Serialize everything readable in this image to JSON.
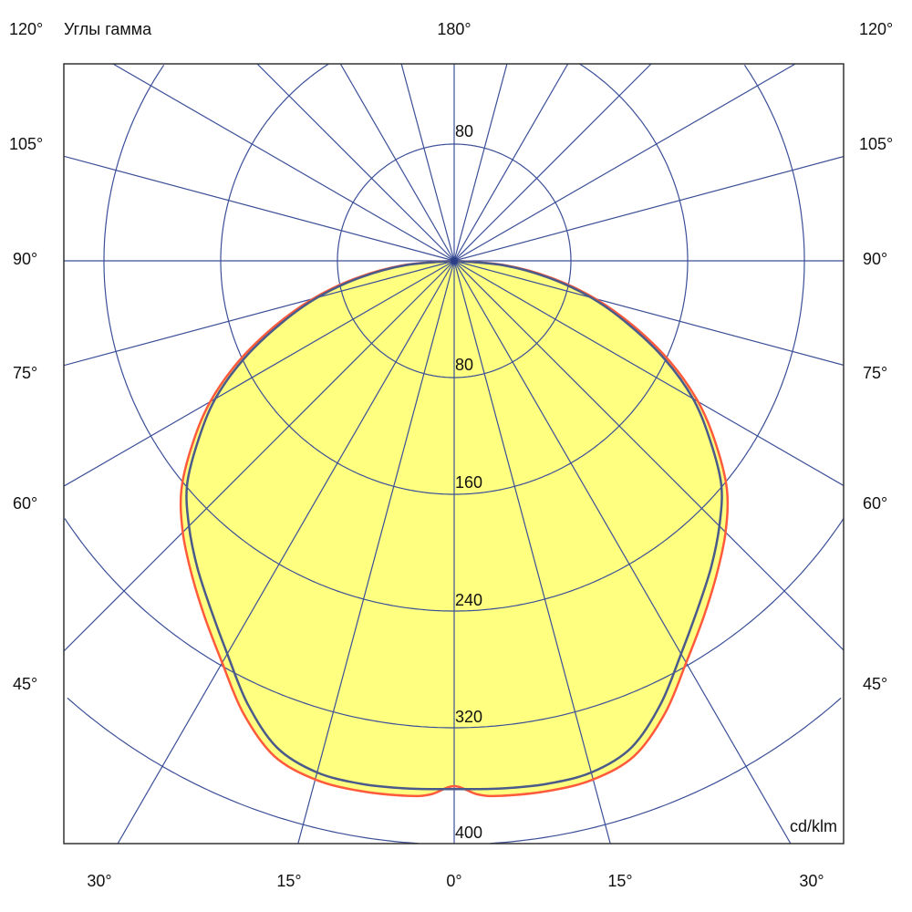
{
  "chart_data": {
    "type": "polar",
    "title": "Углы гамма",
    "unit_label": "cd/klm",
    "top_center_label": "180°",
    "corner_labels": [
      "120°",
      "120°"
    ],
    "side_angle_labels": [
      "105°",
      "90°",
      "75°",
      "60°",
      "45°"
    ],
    "bottom_angle_labels": [
      "30°",
      "15°",
      "0°",
      "15°",
      "30°"
    ],
    "radial_ticks": [
      80,
      160,
      240,
      320,
      400
    ],
    "radial_tick_labels": [
      "80",
      "160",
      "240",
      "320",
      "400"
    ],
    "upper_ring_label": "80",
    "radial_max": 480,
    "angular_grid_step_deg": 15,
    "grid": true,
    "fill_color": "#ffff80",
    "grid_color": "#3b4f98",
    "series": [
      {
        "color": "#ff5a3c",
        "angles": [
          0,
          2.5,
          5,
          10,
          15,
          20,
          25,
          30,
          35,
          40,
          45,
          50,
          55,
          60,
          65,
          70,
          75,
          80,
          85,
          90
        ],
        "values": [
          360,
          366,
          368,
          369,
          368,
          361,
          342,
          318,
          298,
          280,
          263,
          244,
          219,
          193,
          163,
          131,
          100,
          68,
          35,
          0
        ]
      },
      {
        "color": "#4a5a8a",
        "angles": [
          0,
          5,
          10,
          15,
          20,
          25,
          30,
          35,
          40,
          45,
          50,
          55,
          60,
          65,
          70,
          75,
          80,
          85,
          90
        ],
        "values": [
          362,
          363,
          364,
          363,
          355,
          335,
          311,
          291,
          274,
          257,
          239,
          214,
          189,
          159,
          127,
          97,
          65,
          33,
          0
        ]
      }
    ]
  }
}
